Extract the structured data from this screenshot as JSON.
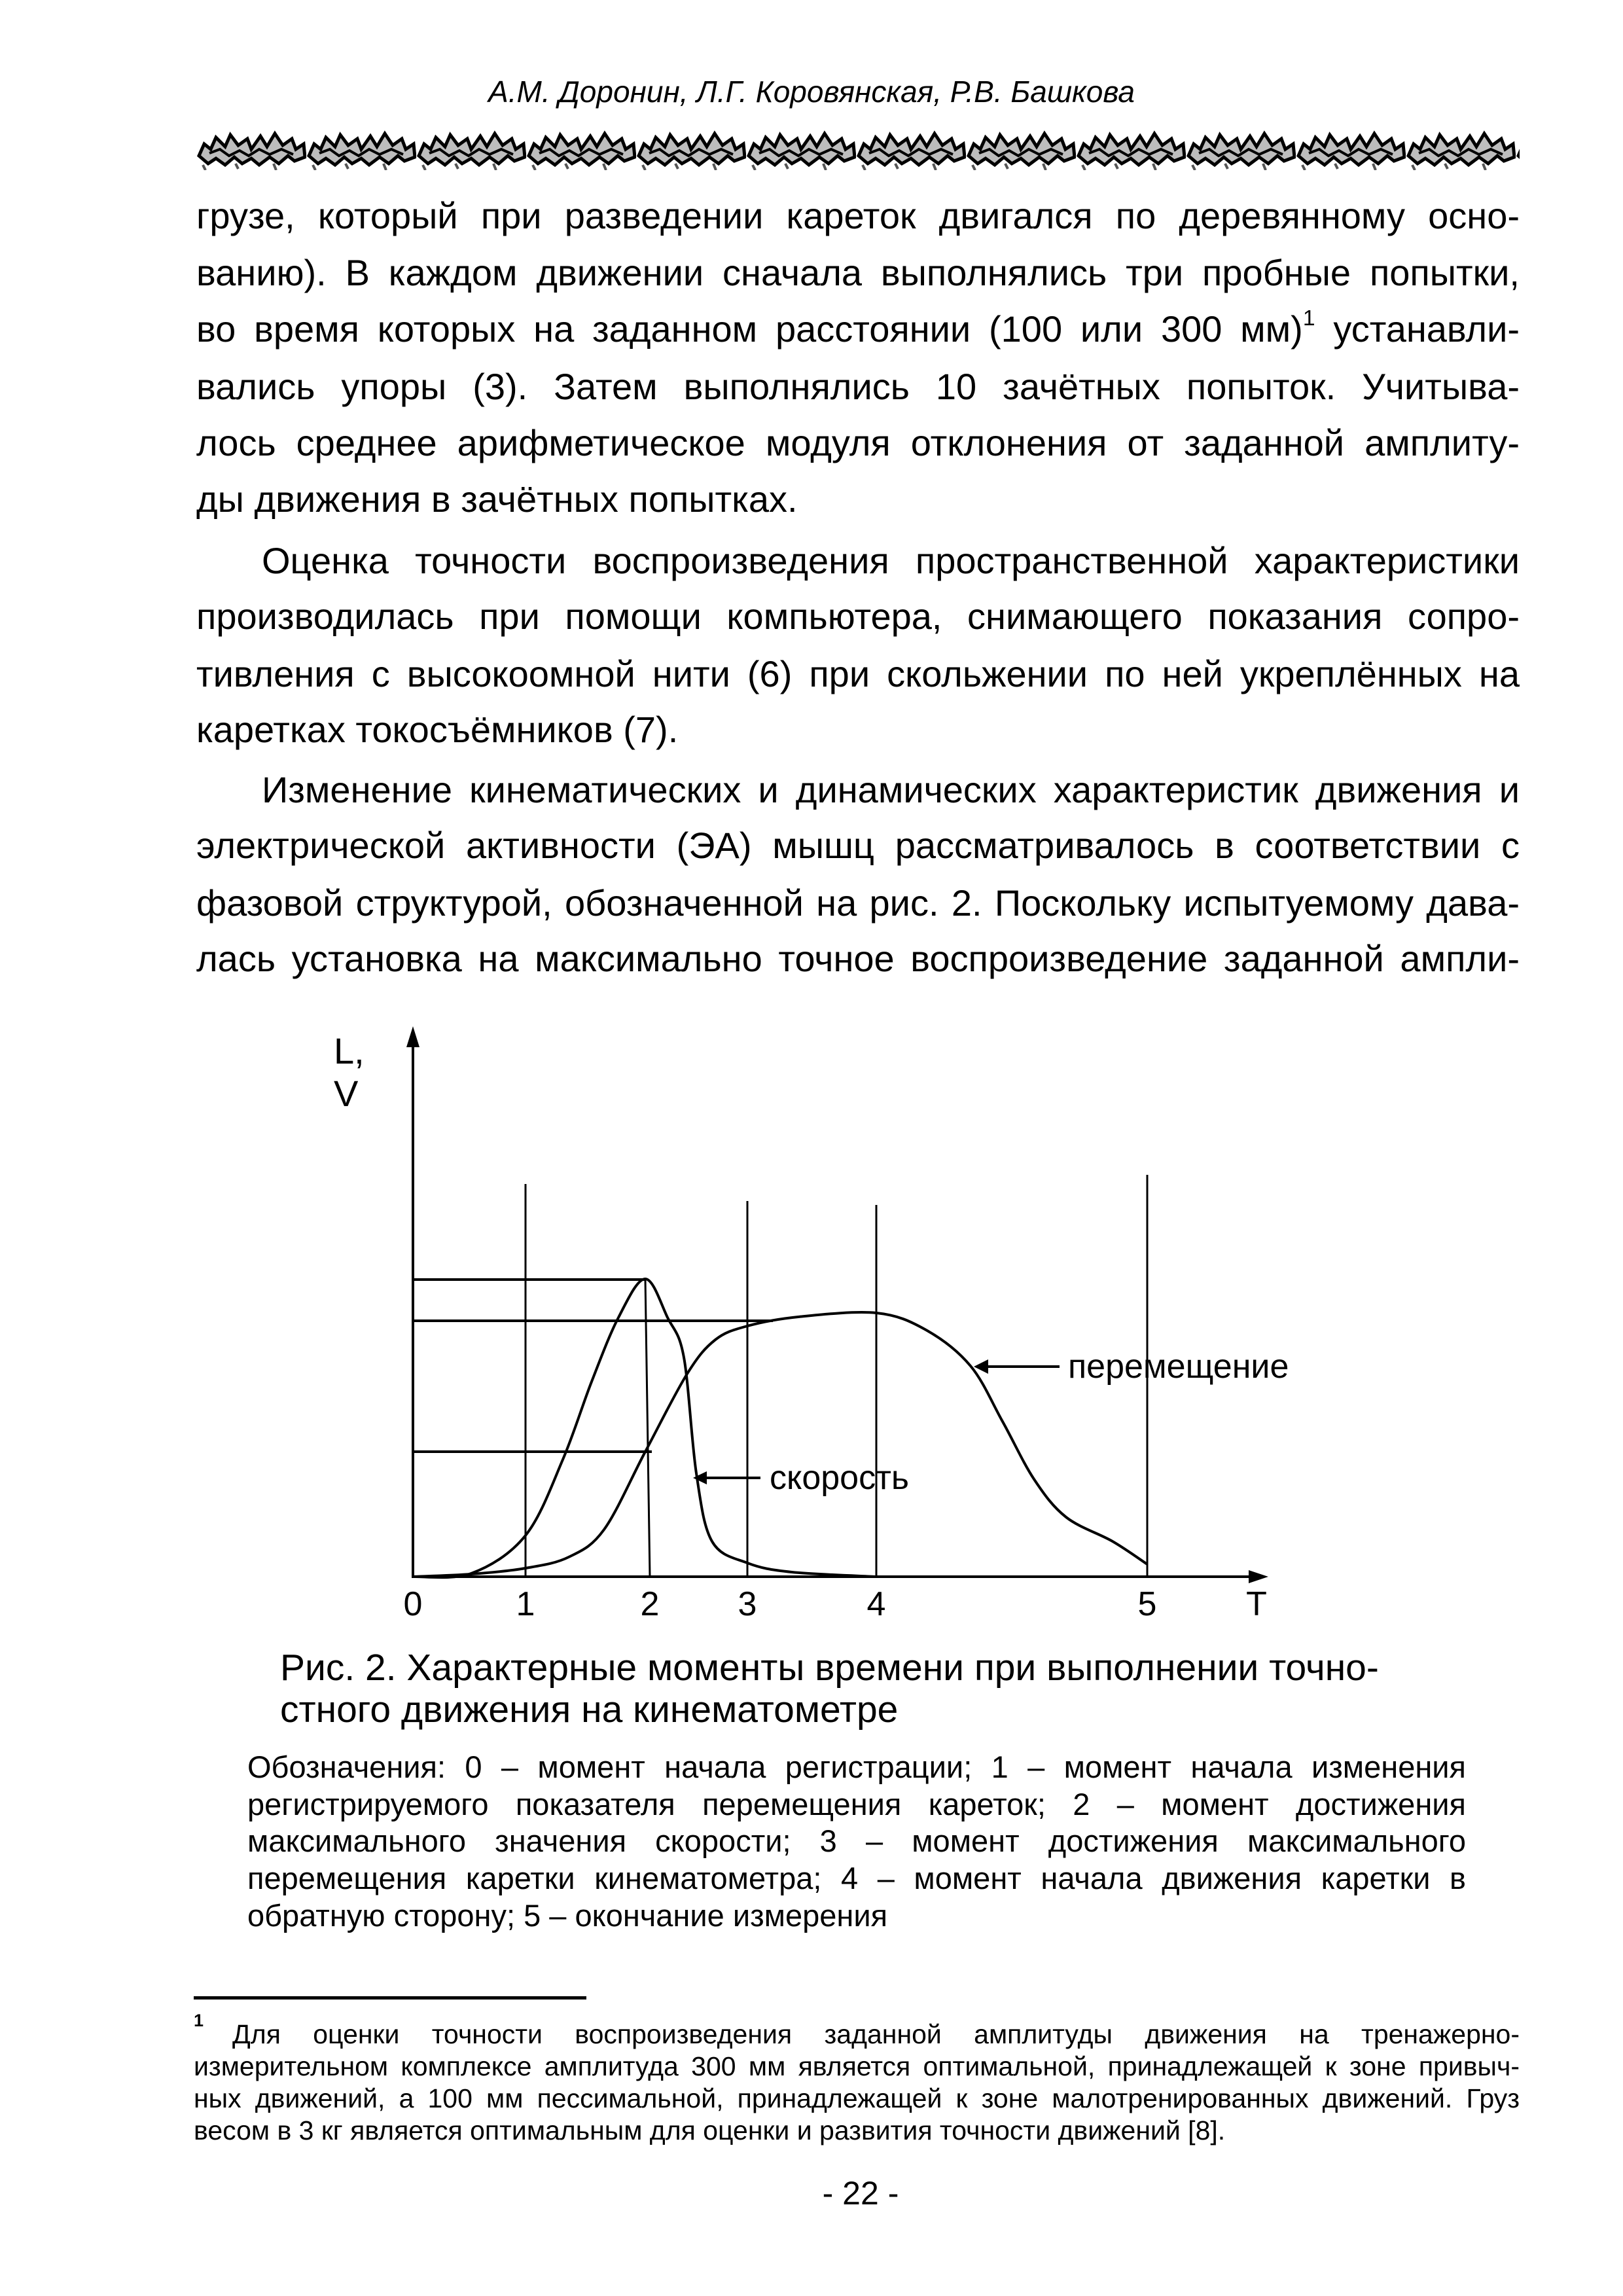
{
  "header": {
    "authors": "А.М. Доронин, Л.Г. Коровянская, Р.В. Башкова",
    "ornament_icon": "floral-border-ornament"
  },
  "body": {
    "paragraph1": [
      "грузе, который при разведении кареток двигался по деревянному осно-",
      "ванию). В каждом движении сначала выполнялись три пробные попытки,",
      {
        "before": "во время которых на заданном расстоянии (100 или 300 мм)",
        "footnote_ref": "1",
        "after": " устанавли-"
      },
      "вались упоры (3). Затем выполнялись 10 зачётных попыток. Учитыва-",
      "лось среднее арифметическое модуля отклонения от заданной амплиту-",
      "ды движения в зачётных попытках."
    ],
    "paragraph2": [
      "Оценка точности воспроизведения пространственной характеристики",
      "производилась при помощи компьютера, снимающего показания сопро-",
      "тивления с высокоомной нити (6) при скольжении по ней укреплённых на",
      "каретках токосъёмников (7)."
    ],
    "paragraph3": [
      "Изменение кинематических и динамических характеристик движения и",
      "электрической активности (ЭА) мышц рассматривалось в соответствии с",
      "фазовой структурой, обозначенной на рис. 2. Поскольку испытуемому дава-",
      "лась установка на максимально точное воспроизведение заданной ампли-"
    ]
  },
  "figure": {
    "y_axis_label": [
      "L,",
      "V"
    ],
    "x_axis_label": "T",
    "x_ticks": [
      "0",
      "1",
      "2",
      "3",
      "4",
      "5"
    ],
    "curve_labels": {
      "displacement": "перемещение",
      "velocity": "скорость"
    },
    "caption": [
      "Рис. 2. Характерные моменты времени при выполнении точно-",
      "стного движения на кинематометре"
    ],
    "legend": [
      "Обозначения: 0 – момент начала регистрации; 1 – момент начала изменения",
      "регистрируемого показателя перемещения кареток; 2 – момент достижения",
      "максимального значения скорости; 3 – момент достижения максимального",
      "перемещения каретки кинематометра; 4 – момент начала движения каретки в",
      "обратную сторону; 5 – окончание измерения"
    ]
  },
  "footnote": {
    "mark": "1",
    "lines": [
      "Для оценки точности воспроизведения заданной амплитуды движения на тренажерно-",
      "измерительном комплексе амплитуда 300 мм является оптимальной, принадлежащей к зоне привыч-",
      "ных движений, а 100 мм пессимальной, принадлежащей к зоне малотренированных движений. Груз",
      "весом в 3 кг является оптимальным для оценки и развития точности движений [8]."
    ]
  },
  "page_number": "- 22 -"
}
